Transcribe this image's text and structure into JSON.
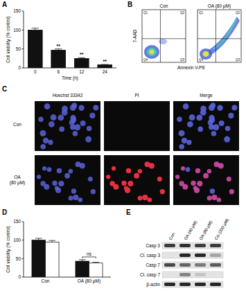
{
  "chart_data": [
    {
      "type": "bar",
      "panel": "A",
      "categories": [
        "0",
        "6",
        "12",
        "24"
      ],
      "values": [
        100,
        47,
        25,
        8
      ],
      "errors": [
        5,
        3,
        2,
        1
      ],
      "annotations": [
        null,
        "**",
        "**",
        "**"
      ],
      "x_label": "Time (h)",
      "y_label": "Cell viability (% control)",
      "ylim": [
        0,
        150
      ],
      "yticks": [
        0,
        50,
        100,
        150
      ],
      "color": "#111111"
    },
    {
      "type": "flow_cytometry",
      "panel": "B",
      "samples": [
        "Con",
        "OA (80 μM)"
      ],
      "quadrants": [
        "Q1",
        "Q2",
        "Q3",
        "Q4"
      ],
      "x_label": "Annexin V-PE",
      "y_label": "7-AAD"
    },
    {
      "type": "microscopy",
      "panel": "C",
      "columns": [
        "Hoechst 33342",
        "PI",
        "Merge"
      ],
      "rows": [
        "Con",
        "OA (80 μM)"
      ]
    },
    {
      "type": "bar",
      "panel": "D",
      "categories": [
        "Con",
        "OA (80 μM)"
      ],
      "series": [
        {
          "color": "#111111",
          "values": [
            100,
            43
          ],
          "errors": [
            5,
            4
          ]
        },
        {
          "color": "#ffffff",
          "values": [
            95,
            38
          ],
          "errors": [
            4,
            2
          ]
        }
      ],
      "annotations": [
        null,
        "ns"
      ],
      "y_label": "Cell viability (% control)",
      "ylim": [
        0,
        150
      ],
      "yticks": [
        0,
        50,
        100,
        150
      ]
    },
    {
      "type": "western_blot",
      "panel": "E",
      "columns": [
        "Con",
        "OA (40 μM)",
        "OA (80 μM)",
        "Cis (200 μM)"
      ],
      "rows": [
        {
          "label": "Casp 3",
          "intensities": [
            0.8,
            0.85,
            0.8,
            0.8
          ]
        },
        {
          "label": "Cl. casp 3",
          "intensities": [
            0,
            0.9,
            0.9,
            0.3
          ]
        },
        {
          "label": "Casp 7",
          "intensities": [
            0.75,
            0.6,
            0.5,
            0.65
          ]
        },
        {
          "label": "Cl. casp 7",
          "intensities": [
            0,
            0.45,
            0.15,
            0
          ]
        },
        {
          "label": "β-actin",
          "intensities": [
            0.9,
            0.9,
            0.9,
            0.9
          ]
        }
      ]
    }
  ]
}
